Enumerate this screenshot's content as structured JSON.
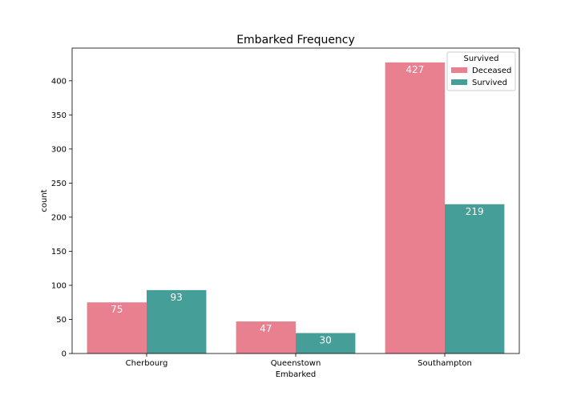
{
  "chart_data": {
    "type": "bar",
    "title": "Embarked Frequency",
    "xlabel": "Embarked",
    "ylabel": "count",
    "categories": [
      "Cherbourg",
      "Queenstown",
      "Southampton"
    ],
    "series": [
      {
        "name": "Deceased",
        "values": [
          75,
          47,
          427
        ],
        "color": "#e8808f"
      },
      {
        "name": "Survived",
        "values": [
          93,
          30,
          219
        ],
        "color": "#469e99"
      }
    ],
    "ylim": [
      0,
      448
    ],
    "yticks": [
      0,
      50,
      100,
      150,
      200,
      250,
      300,
      350,
      400
    ],
    "legend": {
      "title": "Survived",
      "placement": "top-right"
    },
    "grid": false
  }
}
